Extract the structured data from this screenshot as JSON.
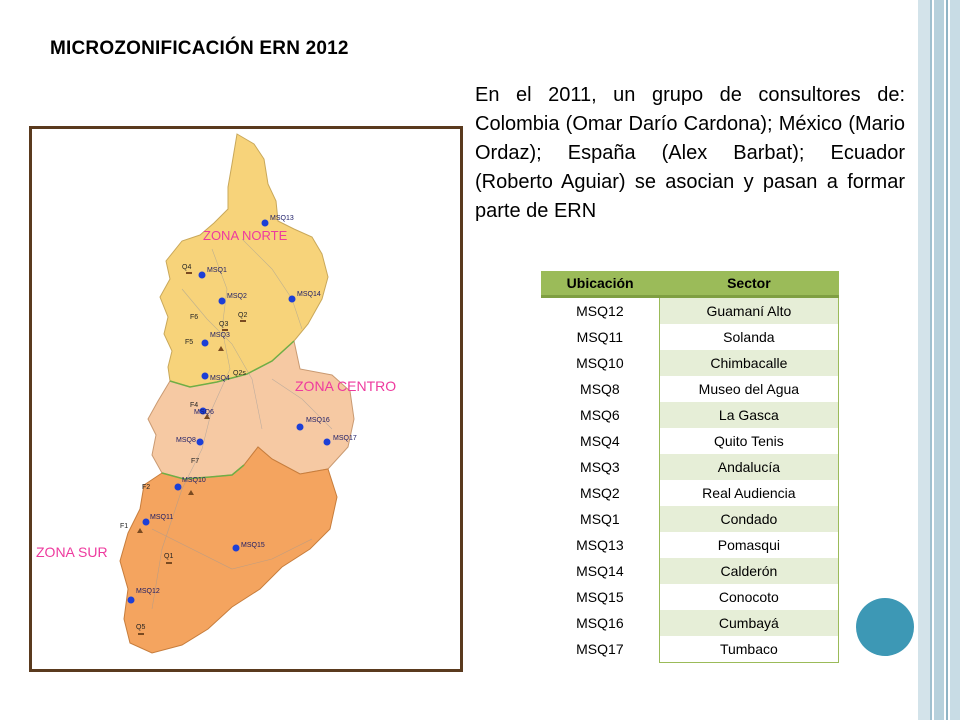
{
  "slide": {
    "title": "MICROZONIFICACIÓN ERN 2012",
    "intro": "En el 2011, un grupo de consultores de: Colombia (Omar Darío Cardona); México (Mario Ordaz); España (Alex Barbat); Ecuador (Roberto Aguiar) se asocian y pasan a formar parte de ERN",
    "accent_color": "#3d98b5"
  },
  "map": {
    "zones": {
      "norte": "ZONA NORTE",
      "centro": "ZONA CENTRO",
      "sur": "ZONA SUR"
    },
    "zone_label_color": "#ee3a9e",
    "zone_colors": {
      "norte": "#f7d37a",
      "centro": "#f6be92",
      "sur": "#f4a45f"
    },
    "stations": {
      "msq13": "MSQ13",
      "msq1": "MSQ1",
      "msq2": "MSQ2",
      "msq14": "MSQ14",
      "msq3": "MSQ3",
      "msq4": "MSQ4",
      "msq6": "MSQ6",
      "msq16": "MSQ16",
      "msq17": "MSQ17",
      "msq8": "MSQ8",
      "msq10": "MSQ10",
      "msq11": "MSQ11",
      "msq15": "MSQ15",
      "msq12": "MSQ12"
    },
    "points": {
      "q4": "Q4",
      "f6": "F6",
      "q3": "Q3",
      "q2": "Q2",
      "f5": "F5",
      "q2s": "Q2s",
      "f4": "F4",
      "f7": "F7",
      "f2": "F2",
      "f1": "F1",
      "q1": "Q1",
      "q5": "Q5"
    }
  },
  "table": {
    "headers": {
      "ubicacion": "Ubicación",
      "sector": "Sector"
    },
    "rows": [
      {
        "ubicacion": "MSQ12",
        "sector": "Guamaní Alto"
      },
      {
        "ubicacion": "MSQ11",
        "sector": "Solanda"
      },
      {
        "ubicacion": "MSQ10",
        "sector": "Chimbacalle"
      },
      {
        "ubicacion": "MSQ8",
        "sector": "Museo del Agua"
      },
      {
        "ubicacion": "MSQ6",
        "sector": "La Gasca"
      },
      {
        "ubicacion": "MSQ4",
        "sector": "Quito Tenis"
      },
      {
        "ubicacion": "MSQ3",
        "sector": "Andalucía"
      },
      {
        "ubicacion": "MSQ2",
        "sector": "Real Audiencia"
      },
      {
        "ubicacion": "MSQ1",
        "sector": "Condado"
      },
      {
        "ubicacion": "MSQ13",
        "sector": "Pomasqui"
      },
      {
        "ubicacion": "MSQ14",
        "sector": "Calderón"
      },
      {
        "ubicacion": "MSQ15",
        "sector": "Conocoto"
      },
      {
        "ubicacion": "MSQ16",
        "sector": "Cumbayá"
      },
      {
        "ubicacion": "MSQ17",
        "sector": "Tumbaco"
      }
    ]
  }
}
